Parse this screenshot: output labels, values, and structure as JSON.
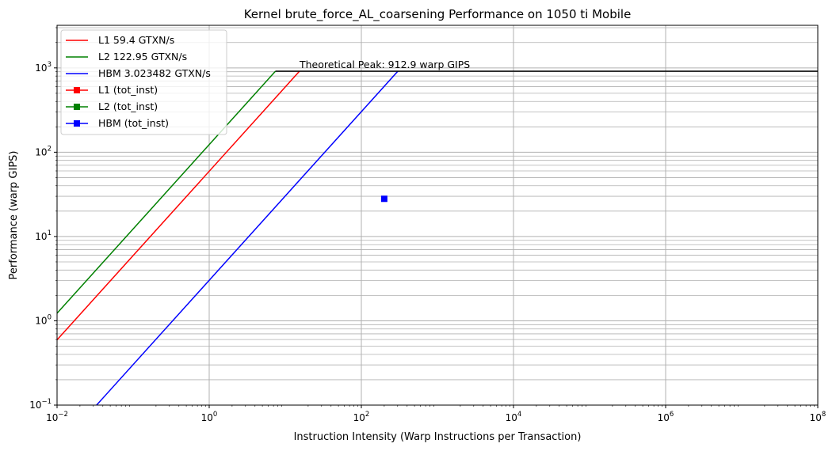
{
  "chart_data": {
    "type": "line",
    "title": "Kernel brute_force_AL_coarsening Performance on 1050 ti Mobile",
    "xlabel": "Instruction Intensity (Warp Instructions per Transaction)",
    "ylabel": "Performance (warp GIPS)",
    "xscale": "log",
    "yscale": "log",
    "xlim": [
      0.01,
      100000000
    ],
    "ylim": [
      0.1,
      3200
    ],
    "x_ticks": [
      {
        "base": "10",
        "exp": "−2",
        "value": 0.01
      },
      {
        "base": "10",
        "exp": "0",
        "value": 1
      },
      {
        "base": "10",
        "exp": "2",
        "value": 100
      },
      {
        "base": "10",
        "exp": "4",
        "value": 10000
      },
      {
        "base": "10",
        "exp": "6",
        "value": 1000000
      },
      {
        "base": "10",
        "exp": "8",
        "value": 100000000
      }
    ],
    "y_ticks": [
      {
        "base": "10",
        "exp": "−1",
        "value": 0.1
      },
      {
        "base": "10",
        "exp": "0",
        "value": 1
      },
      {
        "base": "10",
        "exp": "1",
        "value": 10
      },
      {
        "base": "10",
        "exp": "2",
        "value": 100
      },
      {
        "base": "10",
        "exp": "3",
        "value": 1000
      }
    ],
    "grid": "major and minor",
    "legend_position": "upper-left",
    "peak": {
      "value": 912.9,
      "color": "#000000",
      "label": "Theoretical Peak: 912.9 warp GIPS"
    },
    "series": [
      {
        "name": "L1 59.4 GTXN/s",
        "type": "roofline",
        "bandwidth": 59.4,
        "color": "#ff0000"
      },
      {
        "name": "L2 122.95 GTXN/s",
        "type": "roofline",
        "bandwidth": 122.95,
        "color": "#008000"
      },
      {
        "name": "HBM 3.023482 GTXN/s",
        "type": "roofline",
        "bandwidth": 3.023482,
        "color": "#0000ff"
      },
      {
        "name": "L1 (tot_inst)",
        "type": "point",
        "points": [],
        "color": "#ff0000",
        "marker": "square"
      },
      {
        "name": "L2 (tot_inst)",
        "type": "point",
        "points": [],
        "color": "#008000",
        "marker": "square"
      },
      {
        "name": "HBM (tot_inst)",
        "type": "point",
        "points": [
          {
            "x": 200,
            "y": 28
          }
        ],
        "color": "#0000ff",
        "marker": "square"
      }
    ]
  }
}
